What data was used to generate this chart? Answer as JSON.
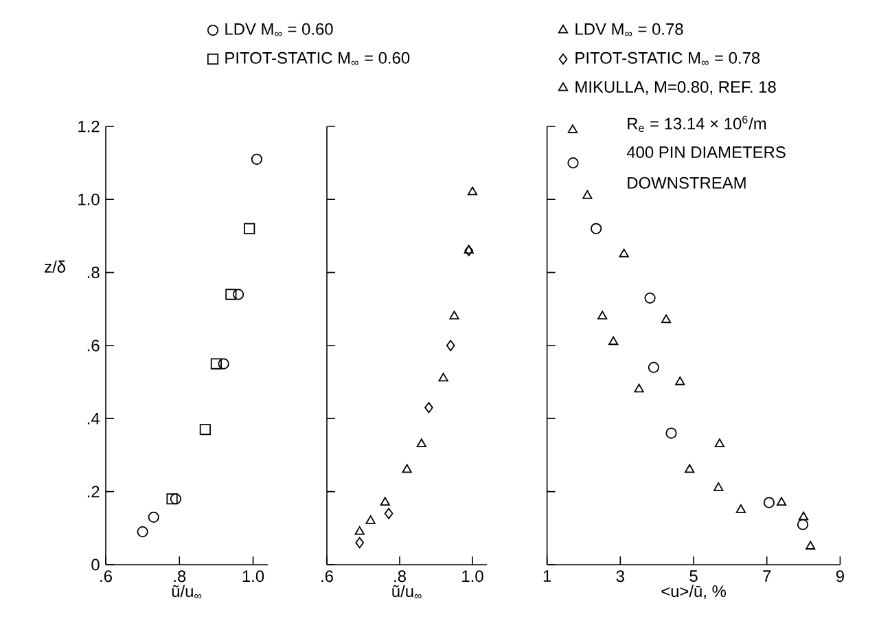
{
  "chart_data": [
    {
      "type": "scatter",
      "xlabel": "ũ/u$_{∞}$",
      "ylabel": "z/δ",
      "legend": "top",
      "xlim": [
        0.6,
        1.04
      ],
      "ylim": [
        0,
        1.2
      ],
      "xticks": [
        {
          "value": 0.6,
          "label": ".6"
        },
        {
          "value": 0.8,
          "label": ".8"
        },
        {
          "value": 1.0,
          "label": "1.0"
        }
      ],
      "yticks": [
        0,
        {
          "value": 0.2,
          "label": ".2"
        },
        {
          "value": 0.4,
          "label": ".4"
        },
        {
          "value": 0.6,
          "label": ".6"
        },
        {
          "value": 0.8,
          "label": ".8"
        },
        {
          "value": 1.0,
          "label": "1.0"
        },
        {
          "value": 1.2,
          "label": "1.2"
        }
      ],
      "series": [
        {
          "name": "LDV  M$_{∞}$ = 0.60",
          "color": "#000000",
          "marker": "circle",
          "x": [
            0.7,
            0.73,
            0.79,
            0.92,
            0.96,
            1.01
          ],
          "values": [
            0.09,
            0.13,
            0.18,
            0.55,
            0.74,
            1.11
          ]
        },
        {
          "name": "PITOT-STATIC  M$_{∞}$ = 0.60",
          "color": "#000000",
          "marker": "square",
          "x": [
            0.78,
            0.87,
            0.9,
            0.94,
            0.99
          ],
          "values": [
            0.18,
            0.37,
            0.55,
            0.74,
            0.92
          ]
        }
      ]
    },
    {
      "type": "scatter",
      "xlabel": "ũ/u$_{∞}$",
      "legend": "top",
      "tick_labels": "x",
      "xlim": [
        0.6,
        1.04
      ],
      "ylim": [
        0,
        1.2
      ],
      "xticks": [
        {
          "value": 0.6,
          "label": ".6"
        },
        {
          "value": 0.8,
          "label": ".8"
        },
        {
          "value": 1.0,
          "label": "1.0"
        }
      ],
      "yticks": [
        0,
        0.2,
        0.4,
        0.6,
        0.8,
        1.0,
        1.2
      ],
      "series": [
        {
          "name": "LDV  M$_{∞}$ = 0.78",
          "color": "#000000",
          "marker": "triangle",
          "x": [
            0.69,
            0.72,
            0.76,
            0.82,
            0.86,
            0.92,
            0.95,
            0.99,
            1.0
          ],
          "values": [
            0.09,
            0.12,
            0.17,
            0.26,
            0.33,
            0.51,
            0.68,
            0.86,
            1.02
          ]
        },
        {
          "name": "PITOT-STATIC M$_{∞}$ = 0.78",
          "color": "#000000",
          "marker": "diamond",
          "x": [
            0.69,
            0.77,
            0.88,
            0.94,
            0.99
          ],
          "values": [
            0.06,
            0.14,
            0.43,
            0.6,
            0.86
          ]
        }
      ]
    },
    {
      "type": "scatter",
      "xlabel": "<u>/ū, %",
      "legend": "top",
      "tick_labels": "x",
      "xlim": [
        1,
        9
      ],
      "ylim": [
        0,
        1.2
      ],
      "xticks": [
        1,
        3,
        5,
        7,
        9
      ],
      "yticks": [
        0,
        0.2,
        0.4,
        0.6,
        0.8,
        1.0,
        1.2
      ],
      "annotations": [
        "R$_{e}$ = 13.14 × 10$^{6}$/m",
        "400 PIN DIAMETERS",
        "DOWNSTREAM"
      ],
      "series": [
        {
          "color": "#000000",
          "marker": "triangle",
          "x": [
            1.7,
            2.1,
            3.1,
            4.25,
            4.63,
            5.71,
            7.4,
            8.0
          ],
          "values": [
            1.19,
            1.01,
            0.85,
            0.67,
            0.5,
            0.33,
            0.17,
            0.13
          ]
        },
        {
          "color": "#000000",
          "marker": "circle",
          "x": [
            1.71,
            2.34,
            3.81,
            3.91,
            4.39,
            7.06,
            7.98
          ],
          "values": [
            1.1,
            0.92,
            0.73,
            0.54,
            0.36,
            0.17,
            0.11
          ]
        },
        {
          "name": "MIKULLA, M=0.80, REF. 18",
          "color": "#000000",
          "marker": "triangle",
          "x": [
            2.51,
            2.81,
            3.51,
            4.89,
            5.68,
            6.29,
            8.19
          ],
          "values": [
            0.68,
            0.61,
            0.48,
            0.26,
            0.21,
            0.15,
            0.05
          ]
        }
      ]
    }
  ]
}
